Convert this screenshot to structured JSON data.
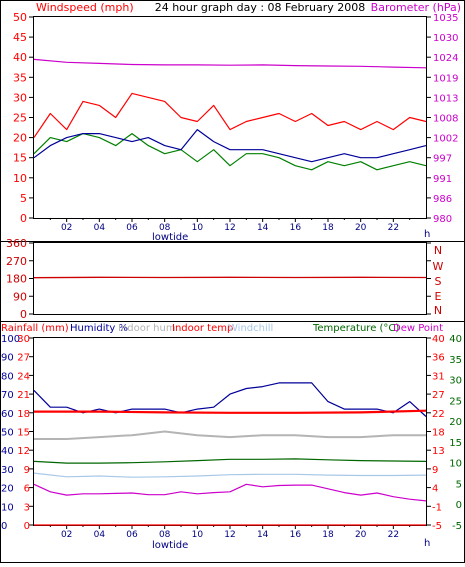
{
  "chart_data": [
    {
      "type": "line",
      "title": "24 hour graph day : 08 February 2008",
      "ylabel_left": "Windspeed (mph)",
      "ylabel_right": "Barometer (hPa)",
      "x_ticks": [
        "02",
        "04",
        "06",
        "08",
        "10",
        "12",
        "14",
        "16",
        "18",
        "20",
        "22"
      ],
      "x_unit": "h",
      "x_annotation": "lowtide",
      "xlim": [
        0,
        24
      ],
      "ylim_left": [
        0,
        50
      ],
      "ylim_right": [
        980,
        1035
      ],
      "yticks_left": [
        0,
        5,
        10,
        15,
        20,
        25,
        30,
        35,
        40,
        45,
        50
      ],
      "yticks_right": [
        "980",
        "986",
        "991",
        "997",
        "1002",
        "1008",
        "1013",
        "1019",
        "1024",
        "1030",
        "1035"
      ],
      "series": [
        {
          "name": "Windspeed (mph)",
          "axis": "left",
          "color": "#ff0000",
          "x": [
            0,
            1,
            2,
            3,
            4,
            5,
            6,
            7,
            8,
            9,
            10,
            11,
            12,
            13,
            14,
            15,
            16,
            17,
            18,
            19,
            20,
            21,
            22,
            23,
            24
          ],
          "y": [
            20,
            26,
            22,
            29,
            28,
            25,
            31,
            30,
            29,
            25,
            24,
            28,
            22,
            24,
            25,
            26,
            24,
            26,
            23,
            24,
            22,
            24,
            22,
            25,
            24
          ]
        },
        {
          "name": "Wind gust",
          "axis": "left",
          "color": "#008000",
          "x": [
            0,
            1,
            2,
            3,
            4,
            5,
            6,
            7,
            8,
            9,
            10,
            11,
            12,
            13,
            14,
            15,
            16,
            17,
            18,
            19,
            20,
            21,
            22,
            23,
            24
          ],
          "y": [
            16,
            20,
            19,
            21,
            20,
            18,
            21,
            18,
            16,
            17,
            14,
            17,
            13,
            16,
            16,
            15,
            13,
            12,
            14,
            13,
            14,
            12,
            13,
            14,
            13
          ]
        },
        {
          "name": "Average wind",
          "axis": "left",
          "color": "#000099",
          "x": [
            0,
            1,
            2,
            3,
            4,
            5,
            6,
            7,
            8,
            9,
            10,
            11,
            12,
            13,
            14,
            15,
            16,
            17,
            18,
            19,
            20,
            21,
            22,
            23,
            24
          ],
          "y": [
            15,
            18,
            20,
            21,
            21,
            20,
            19,
            20,
            18,
            17,
            22,
            19,
            17,
            17,
            17,
            16,
            15,
            14,
            15,
            16,
            15,
            15,
            16,
            17,
            18
          ]
        },
        {
          "name": "Barometer (hPa)",
          "axis": "right",
          "color": "#cc00cc",
          "x": [
            0,
            2,
            4,
            6,
            8,
            10,
            12,
            14,
            16,
            18,
            20,
            22,
            24
          ],
          "y": [
            1023.4,
            1022.6,
            1022.3,
            1022.0,
            1021.9,
            1021.9,
            1021.8,
            1021.9,
            1021.7,
            1021.6,
            1021.5,
            1021.3,
            1021.1
          ]
        }
      ]
    },
    {
      "type": "line",
      "ylabel_left": "",
      "ylabel_right_letters": [
        "N",
        "W",
        "S",
        "E",
        "N"
      ],
      "xlim": [
        0,
        24
      ],
      "ylim_left": [
        0,
        360
      ],
      "yticks_left": [
        0,
        90,
        180,
        270,
        360
      ],
      "series": [
        {
          "name": "Wind direction",
          "axis": "left",
          "color": "#cc0000",
          "x": [
            0,
            4,
            8,
            12,
            16,
            20,
            24
          ],
          "y": [
            184,
            186,
            185,
            186,
            185,
            186,
            185
          ]
        }
      ]
    },
    {
      "type": "line",
      "legend": [
        "Rainfall (mm)",
        "Humidity %",
        "Indoor hum",
        "Indoor temp",
        "Windchill",
        "Temperature (°C)",
        "Dew Point"
      ],
      "x_ticks": [
        "02",
        "04",
        "06",
        "08",
        "10",
        "12",
        "14",
        "16",
        "18",
        "20",
        "22"
      ],
      "x_unit": "h",
      "x_annotation": "lowtide",
      "xlim": [
        0,
        24
      ],
      "ylim_left_outer": [
        0,
        100
      ],
      "ylim_left_inner": [
        0,
        100
      ],
      "ylim_right": [
        -5,
        40
      ],
      "yticks_left_outer": [
        "0",
        "10",
        "20",
        "30",
        "40",
        "50",
        "60",
        "70",
        "80",
        "90",
        "100"
      ],
      "yticks_left_inner": [
        "0",
        "3",
        "6",
        "9",
        "12",
        "15",
        "18",
        "21",
        "24",
        "27",
        "30"
      ],
      "yticks_right_inner": [
        "-5",
        "-1",
        "4",
        "9",
        "13",
        "18",
        "22",
        "27",
        "31",
        "36",
        "40"
      ],
      "yticks_right_outer": [
        "-5",
        "0",
        "5",
        "10",
        "15",
        "20",
        "25",
        "30",
        "35",
        "40"
      ],
      "series": [
        {
          "name": "Humidity %",
          "axis": "left_outer",
          "color": "#000099",
          "x": [
            0,
            1,
            2,
            3,
            4,
            5,
            6,
            7,
            8,
            9,
            10,
            11,
            12,
            13,
            14,
            15,
            16,
            17,
            18,
            19,
            20,
            21,
            22,
            23,
            24
          ],
          "y": [
            72,
            63,
            63,
            60,
            62,
            60,
            62,
            62,
            62,
            60,
            62,
            63,
            70,
            73,
            74,
            76,
            76,
            76,
            66,
            62,
            62,
            62,
            60,
            66,
            58
          ]
        },
        {
          "name": "Indoor hum",
          "axis": "left_outer",
          "color": "#b4b4b4",
          "x": [
            0,
            2,
            4,
            6,
            8,
            10,
            12,
            14,
            16,
            18,
            20,
            22,
            24
          ],
          "y": [
            46,
            46,
            47,
            48,
            50,
            48,
            47,
            48,
            48,
            47,
            47,
            48,
            48
          ]
        },
        {
          "name": "Indoor temp",
          "axis": "right_inner",
          "color": "#ff0000",
          "x": [
            0,
            4,
            8,
            12,
            16,
            20,
            24
          ],
          "y": [
            22.3,
            22.3,
            22.1,
            22.0,
            22.0,
            22.1,
            22.5
          ]
        },
        {
          "name": "Windchill",
          "axis": "right_inner",
          "color": "#a8c8e8",
          "x": [
            0,
            2,
            4,
            6,
            8,
            10,
            12,
            14,
            16,
            18,
            20,
            22,
            24
          ],
          "y": [
            7.5,
            6.6,
            6.8,
            6.5,
            6.6,
            6.8,
            7.1,
            7.2,
            7.2,
            7.0,
            6.9,
            6.9,
            7.0
          ]
        },
        {
          "name": "Temperature (°C)",
          "axis": "right_inner",
          "color": "#006600",
          "x": [
            0,
            2,
            4,
            6,
            8,
            10,
            12,
            14,
            16,
            18,
            20,
            22,
            24
          ],
          "y": [
            10.3,
            9.9,
            9.9,
            10.0,
            10.2,
            10.5,
            10.8,
            10.8,
            10.9,
            10.7,
            10.5,
            10.4,
            10.3
          ]
        },
        {
          "name": "Dew Point",
          "axis": "right_inner",
          "color": "#cc00cc",
          "x": [
            0,
            1,
            2,
            3,
            4,
            5,
            6,
            7,
            8,
            9,
            10,
            11,
            12,
            13,
            14,
            15,
            16,
            17,
            18,
            19,
            20,
            21,
            22,
            23,
            24
          ],
          "y": [
            4.8,
            3.0,
            2.2,
            2.5,
            2.5,
            2.6,
            2.7,
            2.3,
            2.3,
            3.0,
            2.5,
            2.8,
            3.0,
            4.8,
            4.2,
            4.5,
            4.6,
            4.6,
            3.7,
            2.8,
            2.2,
            2.7,
            1.8,
            1.2,
            0.8
          ]
        },
        {
          "name": "Rainfall (mm)",
          "axis": "left_outer",
          "color": "#ff0000",
          "x": [
            0,
            24
          ],
          "y": [
            0,
            0
          ]
        }
      ]
    }
  ]
}
